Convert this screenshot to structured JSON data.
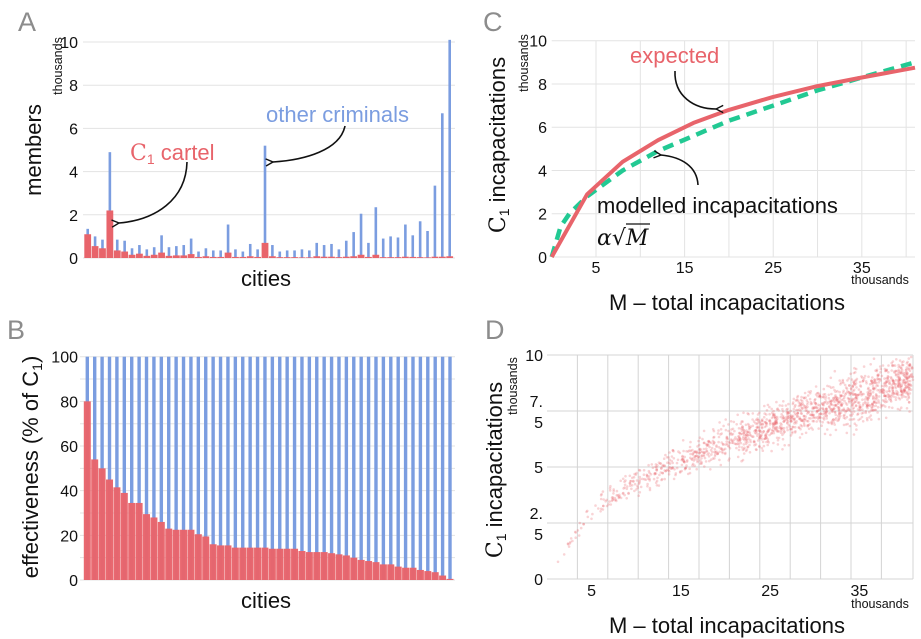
{
  "colors": {
    "blue": "#7b9de0",
    "red": "#e8646b",
    "green": "#22c993"
  },
  "chart_data": [
    {
      "panel": "A",
      "type": "bar",
      "ylabel": "members",
      "yunit": "thousands",
      "xlabel": "cities",
      "ylim": [
        0,
        10
      ],
      "yticks": [
        "0",
        "2",
        "4",
        "6",
        "8",
        "10"
      ],
      "grid": true,
      "annotations": {
        "cartel_main": "C",
        "cartel_sub": "1",
        "cartel_rest": " cartel",
        "other": "other criminals"
      },
      "series": [
        {
          "name": "other criminals",
          "values": [
            1.35,
            1.0,
            0.85,
            4.9,
            0.85,
            0.8,
            0.45,
            0.6,
            0.4,
            0.5,
            1.05,
            0.5,
            0.55,
            0.6,
            0.9,
            0.3,
            0.45,
            0.35,
            0.35,
            1.55,
            0.4,
            0.3,
            0.65,
            0.4,
            5.2,
            0.6,
            0.3,
            0.35,
            0.35,
            0.4,
            0.35,
            0.7,
            0.6,
            0.65,
            0.4,
            0.8,
            1.2,
            2.05,
            0.7,
            2.35,
            0.9,
            1.0,
            0.95,
            1.55,
            1.05,
            1.7,
            1.25,
            3.35,
            6.7,
            10.1
          ]
        },
        {
          "name": "C1 cartel",
          "values": [
            1.1,
            0.55,
            0.45,
            2.2,
            0.35,
            0.3,
            0.15,
            0.2,
            0.1,
            0.15,
            0.25,
            0.1,
            0.12,
            0.12,
            0.18,
            0.05,
            0.08,
            0.05,
            0.05,
            0.25,
            0.05,
            0.05,
            0.08,
            0.05,
            0.7,
            0.08,
            0.04,
            0.04,
            0.04,
            0.03,
            0.03,
            0.08,
            0.06,
            0.06,
            0.04,
            0.06,
            0.08,
            0.15,
            0.05,
            0.15,
            0.04,
            0.04,
            0.04,
            0.06,
            0.05,
            0.04,
            0.03,
            0.06,
            0.06,
            0.08
          ]
        }
      ]
    },
    {
      "panel": "B",
      "type": "bar",
      "ylabel_main": "effectiveness (% of C",
      "ylabel_sub": "1",
      "ylabel_end": ")",
      "xlabel": "cities",
      "ylim": [
        0,
        100
      ],
      "yticks": [
        "0",
        "20",
        "40",
        "60",
        "80",
        "100"
      ],
      "grid": true,
      "series": [
        {
          "values": [
            100,
            100,
            100,
            100,
            100,
            100,
            100,
            100,
            100,
            100,
            100,
            100,
            100,
            100,
            100,
            100,
            100,
            100,
            100,
            100,
            100,
            100,
            100,
            100,
            100,
            100,
            100,
            100,
            100,
            100,
            100,
            100,
            100,
            100,
            100,
            100,
            100,
            100,
            100,
            100,
            100,
            100,
            100,
            100,
            100,
            100,
            100,
            100,
            100,
            100
          ]
        },
        {
          "values": [
            80,
            54,
            50,
            45,
            41.5,
            39,
            34.5,
            34.5,
            29.5,
            28,
            26,
            23,
            22.5,
            22.5,
            22.5,
            20.5,
            19.5,
            16,
            15.5,
            15.5,
            14.5,
            14.5,
            14.5,
            14.5,
            14.5,
            14,
            14,
            14,
            14,
            13,
            12.5,
            12.5,
            12.5,
            12,
            11.5,
            11,
            10,
            9,
            8.5,
            8,
            7,
            7,
            6,
            5.5,
            5.5,
            4.5,
            4,
            3.5,
            2,
            0.5
          ]
        }
      ]
    },
    {
      "panel": "C",
      "type": "line",
      "ylabel_main": "C",
      "ylabel_sub": "1",
      "ylabel_rest": " incapacitations",
      "yunit": "thousands",
      "xlabel": "M – total incapacitations",
      "xunit": "thousands",
      "xlim": [
        0,
        41
      ],
      "ylim": [
        0,
        10
      ],
      "xticks": [
        "5",
        "15",
        "25",
        "35"
      ],
      "yticks": [
        "0",
        "2",
        "4",
        "6",
        "8",
        "10"
      ],
      "grid": true,
      "annotations": {
        "expected": "expected",
        "modelled": "modelled incapacitations",
        "formula_alpha": "α",
        "formula_sqrt": "√",
        "formula_m": "M"
      },
      "series": [
        {
          "name": "expected",
          "x": [
            0,
            4,
            8,
            12,
            16,
            20,
            25,
            30,
            35,
            41
          ],
          "y": [
            0,
            2.9,
            4.4,
            5.4,
            6.2,
            6.8,
            7.4,
            7.9,
            8.3,
            8.75
          ]
        },
        {
          "name": "modelled incapacitations",
          "style": "dashed",
          "x": [
            0,
            1,
            2,
            4,
            8,
            12,
            16,
            20,
            25,
            30,
            35,
            41
          ],
          "y": [
            0,
            1.4,
            2.0,
            2.8,
            4.0,
            4.9,
            5.6,
            6.3,
            7.0,
            7.7,
            8.3,
            9.0
          ]
        }
      ]
    },
    {
      "panel": "D",
      "type": "scatter",
      "ylabel_main": "C",
      "ylabel_sub": "1",
      "ylabel_rest": " incapacitations",
      "yunit": "thousands",
      "xlabel": "M – total incapacitations",
      "xunit": "thousands",
      "xlim": [
        0,
        41
      ],
      "ylim": [
        0,
        10
      ],
      "xticks": [
        "5",
        "15",
        "25",
        "35"
      ],
      "yticks": [
        [
          "0"
        ],
        [
          "2.",
          "5"
        ],
        [
          "5"
        ],
        [
          "7.",
          "5"
        ],
        [
          "10"
        ]
      ],
      "grid": true,
      "band": {
        "x": [
          0,
          5,
          10,
          15,
          20,
          25,
          30,
          35,
          40
        ],
        "center": [
          0,
          3.1,
          4.3,
          5.3,
          6.1,
          6.8,
          7.5,
          8.1,
          8.8
        ],
        "low": [
          0,
          2.7,
          3.8,
          4.6,
          5.3,
          5.9,
          6.6,
          7.2,
          7.8
        ],
        "high": [
          0,
          3.5,
          4.9,
          6.0,
          6.9,
          7.7,
          8.5,
          9.3,
          10.0
        ]
      }
    }
  ]
}
